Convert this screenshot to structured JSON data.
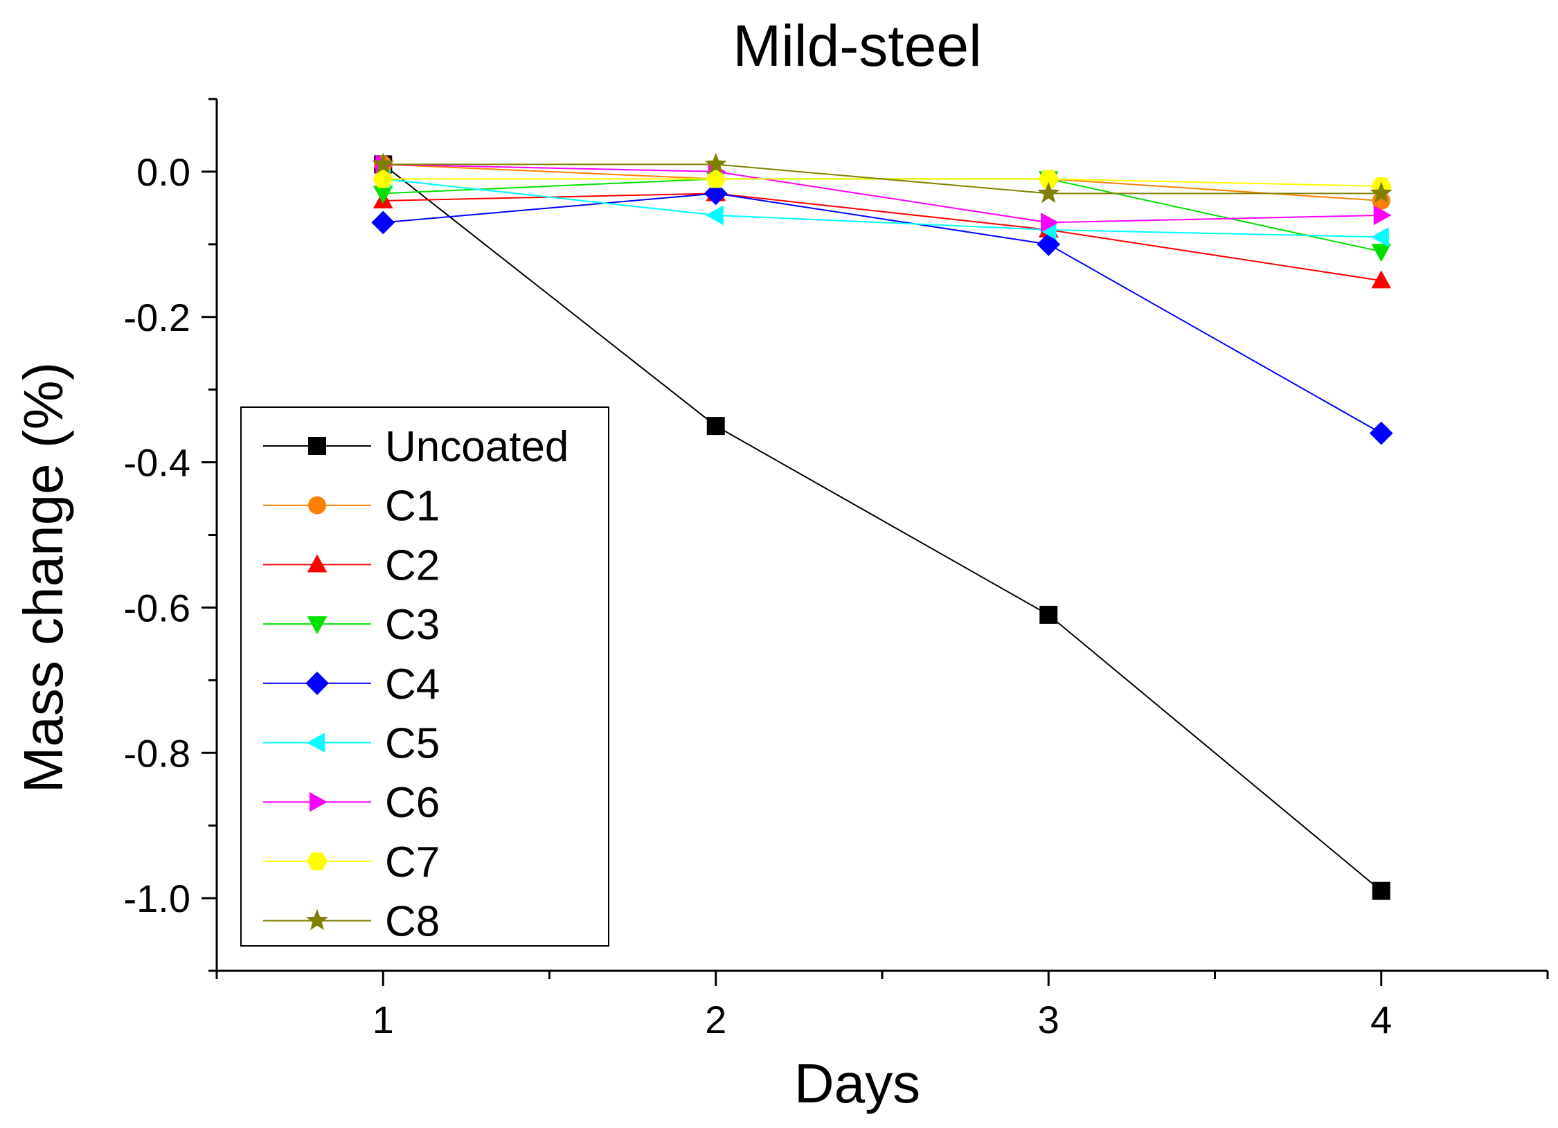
{
  "chart_data": {
    "type": "line",
    "title": "Mild-steel",
    "xlabel": "Days",
    "ylabel": "Mass change (%)",
    "xlim": [
      0.5,
      4.5
    ],
    "ylim": [
      -1.1,
      0.1
    ],
    "xticks": [
      1,
      2,
      3,
      4
    ],
    "xtick_labels": [
      "1",
      "2",
      "3",
      "4"
    ],
    "yticks": [
      0.0,
      -0.2,
      -0.4,
      -0.6,
      -0.8,
      -1.0
    ],
    "ytick_labels": [
      "0.0",
      "-0.2",
      "-0.4",
      "-0.6",
      "-0.8",
      "-1.0"
    ],
    "grid": false,
    "legend_position": "center-left",
    "x": [
      1,
      2,
      3,
      4
    ],
    "series": [
      {
        "name": "Uncoated",
        "color": "#000000",
        "marker": "square",
        "values": [
          0.01,
          -0.35,
          -0.61,
          -0.99
        ]
      },
      {
        "name": "C1",
        "color": "#FF8000",
        "marker": "circle",
        "values": [
          0.01,
          -0.01,
          -0.01,
          -0.04
        ]
      },
      {
        "name": "C2",
        "color": "#FF0000",
        "marker": "triangle-up",
        "values": [
          -0.04,
          -0.03,
          -0.08,
          -0.15
        ]
      },
      {
        "name": "C3",
        "color": "#00E000",
        "marker": "triangle-down",
        "values": [
          -0.03,
          -0.01,
          -0.01,
          -0.11
        ]
      },
      {
        "name": "C4",
        "color": "#0000FF",
        "marker": "diamond",
        "values": [
          -0.07,
          -0.03,
          -0.1,
          -0.36
        ]
      },
      {
        "name": "C5",
        "color": "#00FFFF",
        "marker": "triangle-left",
        "values": [
          -0.01,
          -0.06,
          -0.08,
          -0.09
        ]
      },
      {
        "name": "C6",
        "color": "#FF00FF",
        "marker": "triangle-right",
        "values": [
          0.01,
          0.0,
          -0.07,
          -0.06
        ]
      },
      {
        "name": "C7",
        "color": "#FFFF00",
        "marker": "hexagon",
        "values": [
          -0.01,
          -0.01,
          -0.01,
          -0.02
        ]
      },
      {
        "name": "C8",
        "color": "#808000",
        "marker": "star",
        "values": [
          0.01,
          0.01,
          -0.03,
          -0.03
        ]
      }
    ]
  }
}
